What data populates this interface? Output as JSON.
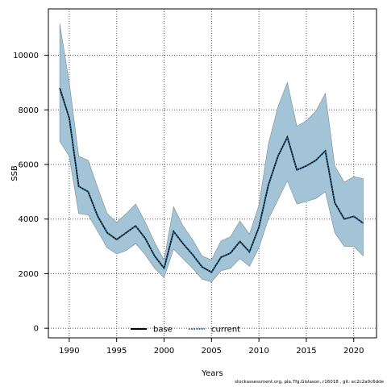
{
  "chart_data": {
    "type": "line",
    "xlabel": "Years",
    "ylabel": "SSB",
    "xlim": [
      1987.8,
      2022.4
    ],
    "ylim": [
      -350,
      11700
    ],
    "x_ticks": [
      1990,
      1995,
      2000,
      2005,
      2010,
      2015,
      2020
    ],
    "y_ticks": [
      0,
      2000,
      4000,
      6000,
      8000,
      10000
    ],
    "grid": true,
    "legend_position": "bottom-center",
    "x": [
      1989,
      1990,
      1991,
      1992,
      1993,
      1994,
      1995,
      1996,
      1997,
      1998,
      1999,
      2000,
      2001,
      2002,
      2003,
      2004,
      2005,
      2006,
      2007,
      2008,
      2009,
      2010,
      2011,
      2012,
      2013,
      2014,
      2015,
      2016,
      2017,
      2018,
      2019,
      2020,
      2021
    ],
    "band": {
      "color": "#a3c4d6",
      "upper": [
        11150,
        9000,
        6300,
        6150,
        5150,
        4200,
        3880,
        4200,
        4550,
        3900,
        3150,
        2500,
        4450,
        3750,
        3250,
        2650,
        2500,
        3200,
        3350,
        3930,
        3450,
        4500,
        6750,
        8100,
        9000,
        7400,
        7600,
        7950,
        8600,
        5950,
        5350,
        5550,
        5480
      ],
      "lower": [
        6850,
        6300,
        4200,
        4150,
        3550,
        2950,
        2720,
        2850,
        3100,
        2700,
        2200,
        1850,
        2900,
        2550,
        2200,
        1800,
        1700,
        2100,
        2200,
        2550,
        2270,
        2950,
        4000,
        4700,
        5400,
        4550,
        4650,
        4750,
        5000,
        3500,
        3000,
        3000,
        2650
      ]
    },
    "series": [
      {
        "name": "base",
        "color": "#000000",
        "values": [
          8800,
          7700,
          5200,
          5000,
          4100,
          3500,
          3250,
          3500,
          3750,
          3300,
          2650,
          2200,
          3550,
          3100,
          2700,
          2250,
          2050,
          2600,
          2750,
          3180,
          2800,
          3700,
          5250,
          6300,
          7000,
          5800,
          5950,
          6150,
          6500,
          4600,
          4000,
          4100,
          3850
        ]
      },
      {
        "name": "current",
        "color": "#1a6a9a",
        "values": [
          8800,
          7700,
          5200,
          5000,
          4100,
          3500,
          3250,
          3500,
          3750,
          3300,
          2650,
          2200,
          3550,
          3100,
          2700,
          2250,
          2050,
          2600,
          2750,
          3180,
          2800,
          3700,
          5250,
          6300,
          7000,
          5800,
          5950,
          6150,
          6500,
          4600,
          4000,
          4100,
          3850
        ]
      }
    ]
  },
  "credit": "stockassessment.org, pla.7fg.Gislason, r16018 , git: ec2c2a0c6dde"
}
